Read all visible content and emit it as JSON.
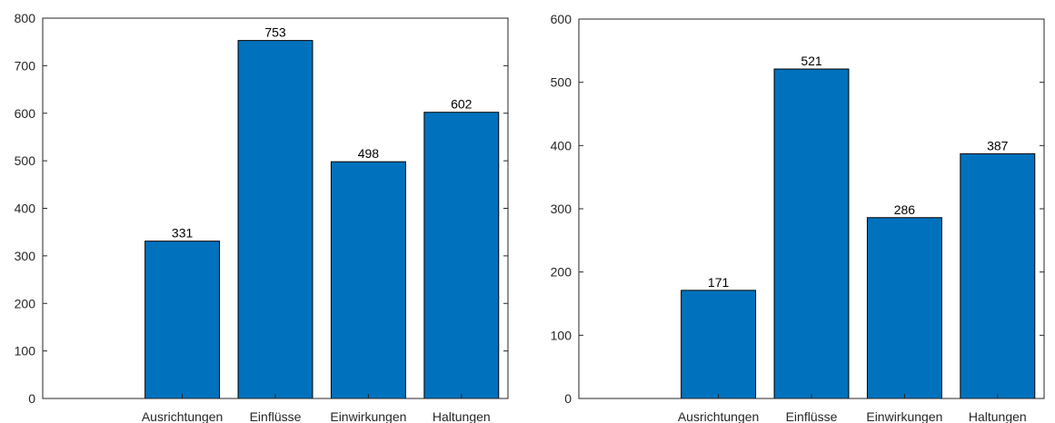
{
  "chart_data": [
    {
      "type": "bar",
      "categories": [
        "Ausrichtungen",
        "Einflüsse",
        "Einwirkungen",
        "Haltungen"
      ],
      "values": [
        331,
        753,
        498,
        602
      ],
      "data_labels": [
        "331",
        "753",
        "498",
        "602"
      ],
      "ylim": [
        0,
        800
      ],
      "yticks": [
        0,
        100,
        200,
        300,
        400,
        500,
        600,
        700,
        800
      ],
      "ytick_labels": [
        "0",
        "100",
        "200",
        "300",
        "400",
        "500",
        "600",
        "700",
        "800"
      ],
      "xlim": [
        -0.5,
        4.5
      ],
      "grid": false,
      "bar_color": "#0072BD",
      "title": "",
      "xlabel": "",
      "ylabel": ""
    },
    {
      "type": "bar",
      "categories": [
        "Ausrichtungen",
        "Einflüsse",
        "Einwirkungen",
        "Haltungen"
      ],
      "values": [
        171,
        521,
        286,
        387
      ],
      "data_labels": [
        "171",
        "521",
        "286",
        "387"
      ],
      "ylim": [
        0,
        600
      ],
      "yticks": [
        0,
        100,
        200,
        300,
        400,
        500,
        600
      ],
      "ytick_labels": [
        "0",
        "100",
        "200",
        "300",
        "400",
        "500",
        "600"
      ],
      "xlim": [
        -0.5,
        4.5
      ],
      "grid": false,
      "bar_color": "#0072BD",
      "title": "",
      "xlabel": "",
      "ylabel": ""
    }
  ]
}
